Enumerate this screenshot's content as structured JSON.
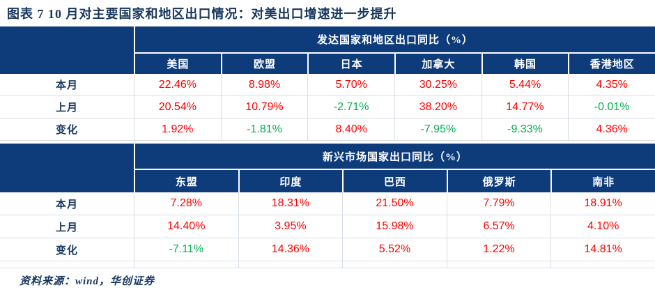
{
  "title": "图表 7  10 月对主要国家和地区出口情况：对美出口增速进一步提升",
  "source_note": "资料来源：wind，华创证券",
  "colors": {
    "header_bg": "#0E3C7B",
    "title_text": "#17375E",
    "positive_value": "#FF0000",
    "negative_value": "#00B050",
    "grid_line": "#D8DDE6"
  },
  "chart_data": {
    "type": "table",
    "title": "10 月对主要国家和地区出口情况：对美出口增速进一步提升",
    "sections": [
      {
        "group_header": "发达国家和地区出口同比（%）",
        "columns": [
          "美国",
          "欧盟",
          "日本",
          "加拿大",
          "韩国",
          "香港地区"
        ],
        "rows": [
          {
            "label": "本月",
            "values": [
              "22.46%",
              "8.98%",
              "5.70%",
              "30.25%",
              "5.44%",
              "4.35%"
            ]
          },
          {
            "label": "上月",
            "values": [
              "20.54%",
              "10.79%",
              "-2.71%",
              "38.20%",
              "14.77%",
              "-0.01%"
            ]
          },
          {
            "label": "变化",
            "values": [
              "1.92%",
              "-1.81%",
              "8.40%",
              "-7.95%",
              "-9.33%",
              "4.36%"
            ]
          }
        ]
      },
      {
        "group_header": "新兴市场国家出口同比（%）",
        "columns": [
          "东盟",
          "印度",
          "巴西",
          "俄罗斯",
          "南非"
        ],
        "rows": [
          {
            "label": "本月",
            "values": [
              "7.28%",
              "18.31%",
              "21.50%",
              "7.79%",
              "18.91%"
            ]
          },
          {
            "label": "上月",
            "values": [
              "14.40%",
              "3.95%",
              "15.98%",
              "6.57%",
              "4.10%"
            ]
          },
          {
            "label": "变化",
            "values": [
              "-7.11%",
              "14.36%",
              "5.52%",
              "1.22%",
              "14.81%"
            ]
          }
        ]
      }
    ]
  }
}
